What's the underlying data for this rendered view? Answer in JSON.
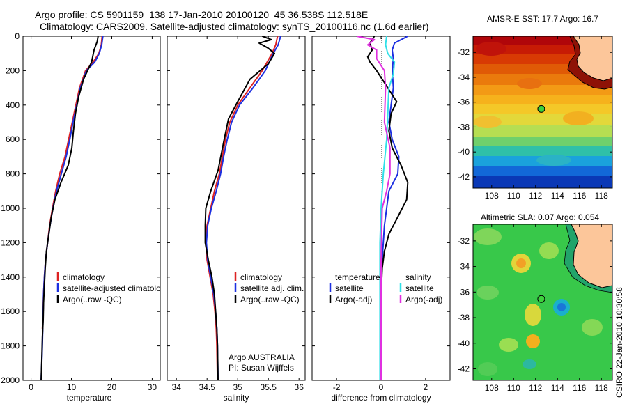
{
  "header": {
    "line1": "Argo profile: CS 5901159_138 17-Jan-2010 20100120_45 36.538S 112.518E",
    "line2": "Climatology: CARS2009. Satellite-adjusted climatology: synTS_20100116.nc (1.6d earlier)"
  },
  "side_label": "CSIRO 22-Jan-2010 10:30:58",
  "panels": {
    "temperature": {
      "xlabel": "temperature",
      "xticks": [
        "0",
        "10",
        "20",
        "30"
      ],
      "legend": [
        "climatology",
        "satellite-adjusted climatology",
        "Argo(..raw -QC)"
      ]
    },
    "salinity": {
      "xlabel": "salinity",
      "xticks": [
        "34",
        "34.5",
        "35",
        "35.5",
        "36"
      ],
      "legend": [
        "climatology",
        "satellite adj. clim.",
        "Argo(..raw -QC)"
      ],
      "note1": "Argo AUSTRALIA",
      "note2": "PI: Susan Wijffels"
    },
    "difference": {
      "xlabel": "difference from climatology",
      "xticks": [
        "-2",
        "0",
        "2"
      ],
      "legend_head_t": "temperature",
      "legend_head_s": "salinity",
      "legend_t": [
        "satellite",
        "Argo(-adj)"
      ],
      "legend_s": [
        "satellite",
        "Argo(-adj)"
      ]
    },
    "yticks": [
      "0",
      "200",
      "400",
      "600",
      "800",
      "1000",
      "1200",
      "1400",
      "1600",
      "1800",
      "2000"
    ]
  },
  "maps": {
    "sst_title": "AMSR-E SST: 17.7 Argo: 16.7",
    "sla_title": "Altimetric SLA: 0.07 Argo: 0.054",
    "yticks": [
      "-32",
      "-34",
      "-36",
      "-38",
      "-40",
      "-42"
    ],
    "xticks": [
      "108",
      "110",
      "112",
      "114",
      "116",
      "118"
    ],
    "station": {
      "lon": 112.518,
      "lat": -36.538
    }
  },
  "colors": {
    "clim": "#dd2222",
    "sat": "#1c2fe0",
    "argo": "#000000",
    "sat_s": "#30e0e8",
    "argo_s": "#e030e0",
    "land": "#fcc69a"
  },
  "chart_data": [
    {
      "type": "line",
      "title": "",
      "xlabel": "temperature",
      "ylabel": "",
      "xlim": [
        -2,
        32
      ],
      "ylim": [
        2000,
        0
      ],
      "series": [
        {
          "name": "climatology",
          "x": [
            17.6,
            17.4,
            16.8,
            15.4,
            13.5,
            12,
            11.1,
            10.2,
            9.3,
            8.4,
            7.1,
            6.1,
            5.3,
            4.6,
            4.1,
            3.6,
            3.3,
            3.1,
            3,
            2.8
          ],
          "y": [
            0,
            50,
            100,
            150,
            200,
            300,
            400,
            500,
            600,
            700,
            800,
            900,
            1000,
            1100,
            1200,
            1300,
            1400,
            1500,
            1600,
            1700
          ]
        },
        {
          "name": "satellite-adjusted climatology",
          "x": [
            17.8,
            17.5,
            16.9,
            15.8,
            13.7,
            12.2,
            11.3,
            10.4,
            9.6,
            8.7,
            7.5,
            6.3,
            5.4,
            4.7,
            4.1,
            3.6,
            3.3,
            3.1,
            3,
            2.9,
            2.8,
            2.5
          ],
          "y": [
            0,
            50,
            100,
            150,
            200,
            300,
            400,
            500,
            600,
            700,
            800,
            900,
            1000,
            1100,
            1200,
            1300,
            1400,
            1500,
            1600,
            1700,
            1800,
            2000
          ]
        },
        {
          "name": "Argo(..raw -QC)",
          "x": [
            16.6,
            16.4,
            15.6,
            15,
            13,
            11.8,
            11,
            10.5,
            10.1,
            9.2,
            7.4,
            5.9,
            5,
            4.4,
            3.8,
            3.5,
            3.3,
            3.1,
            3,
            2.8,
            2.7,
            2.5
          ],
          "y": [
            0,
            30,
            80,
            150,
            250,
            350,
            450,
            550,
            650,
            750,
            850,
            950,
            1050,
            1150,
            1250,
            1350,
            1450,
            1550,
            1650,
            1750,
            1850,
            2000
          ]
        }
      ]
    },
    {
      "type": "line",
      "title": "",
      "xlabel": "salinity",
      "ylabel": "",
      "xlim": [
        33.85,
        36.1
      ],
      "ylim": [
        2000,
        0
      ],
      "series": [
        {
          "name": "climatology",
          "x": [
            35.65,
            35.62,
            35.56,
            35.4,
            35.2,
            35,
            34.87,
            34.8,
            34.75,
            34.7,
            34.62,
            34.56,
            34.5,
            34.48,
            34.5,
            34.55,
            34.6,
            34.63,
            34.65,
            34.66,
            34.67
          ],
          "y": [
            0,
            50,
            100,
            200,
            300,
            400,
            500,
            600,
            700,
            800,
            900,
            1000,
            1100,
            1200,
            1300,
            1400,
            1500,
            1600,
            1700,
            1800,
            2000
          ]
        },
        {
          "name": "satellite adj. clim.",
          "x": [
            35.7,
            35.66,
            35.58,
            35.45,
            35.25,
            35.03,
            34.9,
            34.83,
            34.77,
            34.72,
            34.65,
            34.57,
            34.51,
            34.49,
            34.51,
            34.56,
            34.61,
            34.64,
            34.66,
            34.67,
            34.68
          ],
          "y": [
            0,
            50,
            100,
            200,
            300,
            400,
            500,
            600,
            700,
            800,
            900,
            1000,
            1100,
            1200,
            1300,
            1400,
            1500,
            1600,
            1700,
            1800,
            2000
          ]
        },
        {
          "name": "Argo(..raw -QC)",
          "x": [
            35.4,
            35.55,
            35.35,
            35.5,
            35.6,
            35.5,
            35.2,
            35,
            34.85,
            34.78,
            34.68,
            34.56,
            34.48,
            34.47,
            34.47,
            34.52,
            34.58,
            34.62,
            34.64,
            34.66,
            34.67,
            34.68
          ],
          "y": [
            0,
            20,
            40,
            70,
            100,
            160,
            250,
            380,
            480,
            600,
            780,
            900,
            1000,
            1100,
            1200,
            1300,
            1400,
            1500,
            1600,
            1700,
            1800,
            2000
          ]
        }
      ]
    },
    {
      "type": "line",
      "title": "",
      "xlabel": "difference from climatology",
      "ylabel": "",
      "xlim": [
        -3.1,
        3.1
      ],
      "ylim": [
        2000,
        0
      ],
      "series": [
        {
          "name": "temperature satellite",
          "x": [
            1.2,
            0.6,
            0.5,
            0.55,
            0.5,
            0.55,
            0.45,
            0.35,
            0.5,
            0.8,
            0.75,
            0.35,
            0.25,
            0.15,
            0.1,
            0.05,
            0.02,
            0,
            0,
            0
          ],
          "y": [
            0,
            40,
            80,
            130,
            200,
            300,
            400,
            500,
            600,
            700,
            800,
            900,
            1000,
            1100,
            1200,
            1300,
            1400,
            1500,
            1700,
            2000
          ]
        },
        {
          "name": "temperature Argo(-adj)",
          "x": [
            -0.3,
            -0.5,
            -0.4,
            -0.6,
            -0.5,
            -0.2,
            0.3,
            0.7,
            0.45,
            0.35,
            0.5,
            0.9,
            1.2,
            1.15,
            0.75,
            0.35,
            0.15,
            0.05,
            0,
            0,
            0
          ],
          "y": [
            0,
            40,
            80,
            120,
            150,
            200,
            300,
            380,
            450,
            550,
            650,
            750,
            850,
            950,
            1050,
            1150,
            1250,
            1350,
            1500,
            1700,
            2000
          ]
        },
        {
          "name": "salinity satellite",
          "x": [
            0.25,
            0.2,
            0.3,
            0.6,
            0.55,
            0.35,
            0.3,
            0.25,
            0.1,
            0,
            -0.05,
            -0.05,
            -0.05,
            -0.05
          ],
          "y": [
            0,
            50,
            100,
            150,
            220,
            300,
            450,
            600,
            800,
            1000,
            1200,
            1400,
            1700,
            2000
          ]
        },
        {
          "name": "salinity Argo(-adj)",
          "x": [
            -1.1,
            -0.3,
            -0.6,
            -0.2,
            -0.2,
            0.15,
            0.2,
            0.15,
            0.4,
            0.4,
            0.25,
            0.05,
            0,
            0
          ],
          "y": [
            0,
            20,
            50,
            80,
            130,
            200,
            300,
            500,
            650,
            800,
            900,
            1000,
            1300,
            2000
          ]
        }
      ]
    }
  ]
}
